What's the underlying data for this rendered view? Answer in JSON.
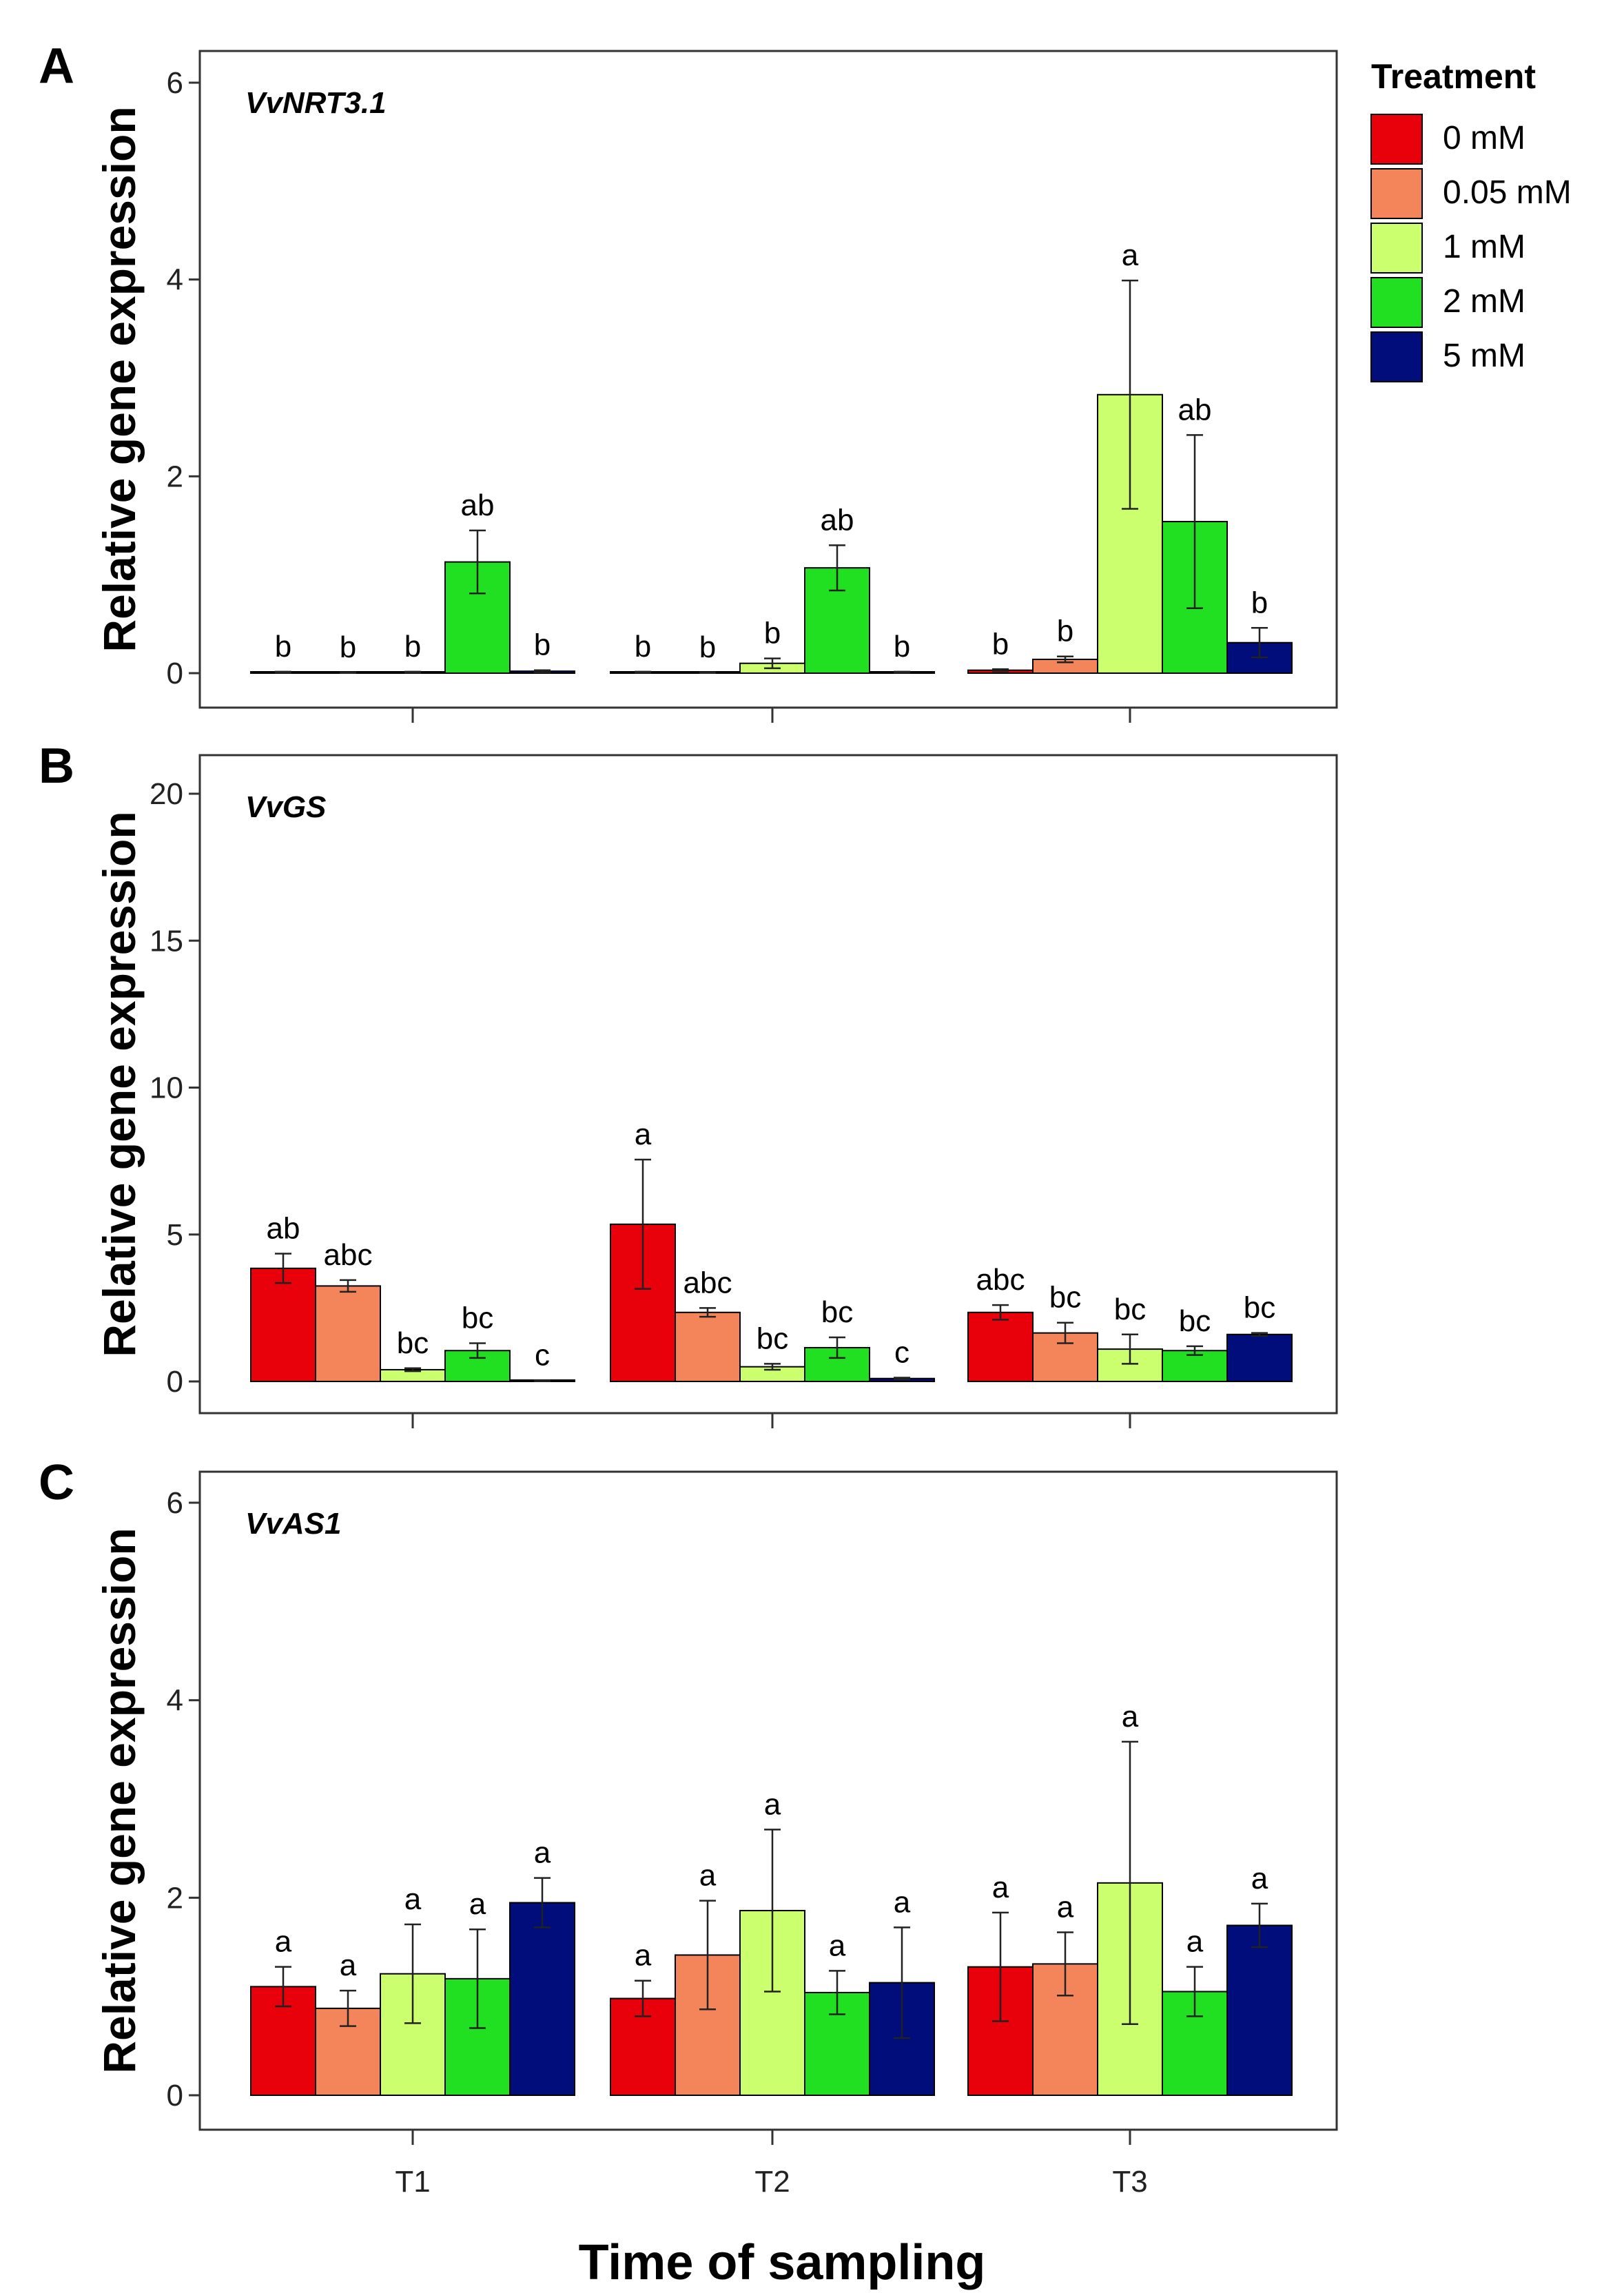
{
  "figure": {
    "xlabel": "Time of sampling",
    "categories": [
      "T1",
      "T2",
      "T3"
    ]
  },
  "legend": {
    "title": "Treatment",
    "items": [
      {
        "label": "0 mM",
        "color": "#e8000b"
      },
      {
        "label": "0.05 mM",
        "color": "#f4845a"
      },
      {
        "label": "1 mM",
        "color": "#ccff6e"
      },
      {
        "label": "2 mM",
        "color": "#21e021"
      },
      {
        "label": "5 mM",
        "color": "#000d7a"
      }
    ]
  },
  "chart_data": [
    {
      "type": "bar",
      "panel_label": "A",
      "title": "VvNRT3.1",
      "ylabel": "Relative gene expression",
      "ylim": [
        0,
        6
      ],
      "yticks": [
        0,
        2,
        4,
        6
      ],
      "categories": [
        "T1",
        "T2",
        "T3"
      ],
      "series": [
        {
          "name": "0 mM",
          "values": [
            0.01,
            0.01,
            0.03
          ],
          "errors": [
            0.005,
            0.005,
            0.01
          ],
          "letters": [
            "b",
            "b",
            "b"
          ]
        },
        {
          "name": "0.05 mM",
          "values": [
            0.005,
            0.005,
            0.14
          ],
          "errors": [
            0.003,
            0.003,
            0.03
          ],
          "letters": [
            "b",
            "b",
            "b"
          ]
        },
        {
          "name": "1 mM",
          "values": [
            0.01,
            0.1,
            2.83
          ],
          "errors": [
            0.005,
            0.05,
            1.16
          ],
          "letters": [
            "b",
            "b",
            "a"
          ]
        },
        {
          "name": "2 mM",
          "values": [
            1.13,
            1.07,
            1.54
          ],
          "errors": [
            0.32,
            0.23,
            0.88
          ],
          "letters": [
            "ab",
            "ab",
            "ab"
          ]
        },
        {
          "name": "5 mM",
          "values": [
            0.02,
            0.01,
            0.31
          ],
          "errors": [
            0.01,
            0.005,
            0.15
          ],
          "letters": [
            "b",
            "b",
            "b"
          ]
        }
      ]
    },
    {
      "type": "bar",
      "panel_label": "B",
      "title": "VvGS",
      "ylabel": "Relative gene expression",
      "ylim": [
        0,
        20
      ],
      "yticks": [
        0,
        5,
        10,
        15,
        20
      ],
      "categories": [
        "T1",
        "T2",
        "T3"
      ],
      "series": [
        {
          "name": "0 mM",
          "values": [
            3.85,
            5.35,
            2.35
          ],
          "errors": [
            0.5,
            2.2,
            0.25
          ],
          "letters": [
            "ab",
            "a",
            "abc"
          ]
        },
        {
          "name": "0.05 mM",
          "values": [
            3.25,
            2.35,
            1.65
          ],
          "errors": [
            0.2,
            0.15,
            0.35
          ],
          "letters": [
            "abc",
            "abc",
            "bc"
          ]
        },
        {
          "name": "1 mM",
          "values": [
            0.4,
            0.5,
            1.1
          ],
          "errors": [
            0.05,
            0.1,
            0.5
          ],
          "letters": [
            "bc",
            "bc",
            "bc"
          ]
        },
        {
          "name": "2 mM",
          "values": [
            1.05,
            1.15,
            1.05
          ],
          "errors": [
            0.25,
            0.35,
            0.15
          ],
          "letters": [
            "bc",
            "bc",
            "bc"
          ]
        },
        {
          "name": "5 mM",
          "values": [
            0.02,
            0.1,
            1.6
          ],
          "errors": [
            0.01,
            0.03,
            0.05
          ],
          "letters": [
            "c",
            "c",
            "bc"
          ]
        }
      ]
    },
    {
      "type": "bar",
      "panel_label": "C",
      "title": "VvAS1",
      "ylabel": "Relative gene expression",
      "ylim": [
        0,
        6
      ],
      "yticks": [
        0,
        2,
        4,
        6
      ],
      "categories": [
        "T1",
        "T2",
        "T3"
      ],
      "series": [
        {
          "name": "0 mM",
          "values": [
            1.1,
            0.98,
            1.3
          ],
          "errors": [
            0.2,
            0.18,
            0.55
          ],
          "letters": [
            "a",
            "a",
            "a"
          ]
        },
        {
          "name": "0.05 mM",
          "values": [
            0.88,
            1.42,
            1.33
          ],
          "errors": [
            0.18,
            0.55,
            0.32
          ],
          "letters": [
            "a",
            "a",
            "a"
          ]
        },
        {
          "name": "1 mM",
          "values": [
            1.23,
            1.87,
            2.15
          ],
          "errors": [
            0.5,
            0.82,
            1.43
          ],
          "letters": [
            "a",
            "a",
            "a"
          ]
        },
        {
          "name": "2 mM",
          "values": [
            1.18,
            1.04,
            1.05
          ],
          "errors": [
            0.5,
            0.22,
            0.25
          ],
          "letters": [
            "a",
            "a",
            "a"
          ]
        },
        {
          "name": "5 mM",
          "values": [
            1.95,
            1.14,
            1.72
          ],
          "errors": [
            0.25,
            0.56,
            0.22
          ],
          "letters": [
            "a",
            "a",
            "a"
          ]
        }
      ]
    }
  ]
}
